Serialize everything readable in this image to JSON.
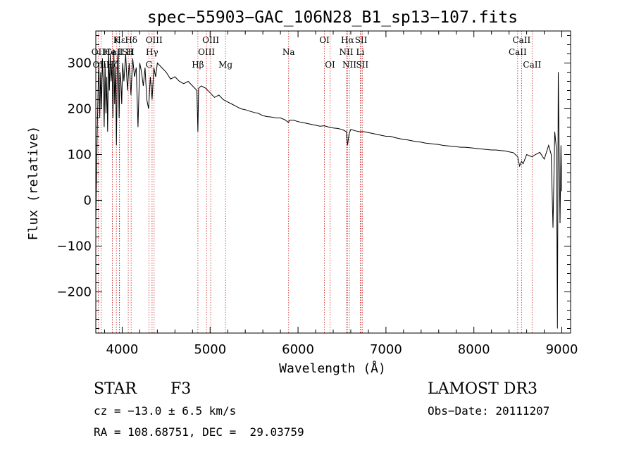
{
  "chart_data": {
    "type": "line",
    "title": "spec−55903−GAC_106N28_B1_sp13−107.fits",
    "xlabel": "Wavelength (Å)",
    "ylabel": "Flux (relative)",
    "xlim": [
      3700,
      9100
    ],
    "ylim": [
      -290,
      370
    ],
    "xticks": [
      4000,
      5000,
      6000,
      7000,
      8000,
      9000
    ],
    "yticks": [
      -200,
      -100,
      0,
      100,
      200,
      300
    ],
    "ytick_labels": [
      "−200",
      "−100",
      "0",
      "100",
      "200",
      "300"
    ],
    "series": [
      {
        "name": "flux",
        "x": [
          3700,
          3715,
          3725,
          3735,
          3745,
          3755,
          3765,
          3775,
          3785,
          3795,
          3805,
          3815,
          3825,
          3835,
          3845,
          3855,
          3865,
          3875,
          3885,
          3895,
          3905,
          3915,
          3925,
          3935,
          3945,
          3955,
          3965,
          3975,
          3985,
          3995,
          4005,
          4020,
          4040,
          4060,
          4080,
          4100,
          4120,
          4140,
          4160,
          4180,
          4200,
          4220,
          4240,
          4260,
          4280,
          4300,
          4320,
          4340,
          4360,
          4380,
          4400,
          4450,
          4500,
          4550,
          4600,
          4650,
          4700,
          4750,
          4800,
          4850,
          4861,
          4870,
          4900,
          4950,
          5000,
          5050,
          5100,
          5150,
          5200,
          5250,
          5300,
          5350,
          5400,
          5450,
          5500,
          5550,
          5600,
          5650,
          5700,
          5750,
          5800,
          5850,
          5893,
          5900,
          5950,
          6000,
          6050,
          6100,
          6150,
          6200,
          6250,
          6300,
          6350,
          6400,
          6450,
          6500,
          6550,
          6563,
          6580,
          6600,
          6650,
          6700,
          6750,
          6800,
          6850,
          6900,
          6950,
          7000,
          7050,
          7100,
          7150,
          7200,
          7250,
          7300,
          7350,
          7400,
          7450,
          7500,
          7550,
          7600,
          7650,
          7700,
          7750,
          7800,
          7850,
          7900,
          7950,
          8000,
          8050,
          8100,
          8150,
          8200,
          8250,
          8300,
          8350,
          8400,
          8450,
          8498,
          8520,
          8542,
          8560,
          8600,
          8662,
          8700,
          8750,
          8800,
          8850,
          8880,
          8900,
          8920,
          8940,
          8950,
          8960,
          8970,
          8980,
          8990,
          9000
        ],
        "y": [
          -50,
          140,
          230,
          300,
          180,
          280,
          200,
          310,
          260,
          160,
          300,
          190,
          270,
          150,
          330,
          240,
          320,
          260,
          300,
          180,
          330,
          210,
          290,
          120,
          300,
          330,
          180,
          280,
          260,
          210,
          300,
          260,
          320,
          240,
          300,
          230,
          310,
          270,
          290,
          160,
          300,
          280,
          250,
          290,
          220,
          200,
          270,
          220,
          290,
          270,
          300,
          290,
          280,
          265,
          270,
          260,
          255,
          260,
          250,
          240,
          150,
          245,
          250,
          245,
          235,
          225,
          230,
          220,
          215,
          210,
          205,
          200,
          198,
          195,
          192,
          190,
          185,
          183,
          182,
          180,
          180,
          176,
          170,
          175,
          175,
          172,
          170,
          168,
          166,
          164,
          162,
          163,
          160,
          158,
          157,
          155,
          150,
          120,
          145,
          155,
          152,
          150,
          150,
          148,
          146,
          144,
          142,
          140,
          140,
          137,
          135,
          133,
          132,
          130,
          128,
          127,
          125,
          124,
          123,
          122,
          120,
          119,
          118,
          117,
          116,
          116,
          115,
          114,
          113,
          112,
          111,
          110,
          110,
          109,
          108,
          106,
          104,
          95,
          75,
          85,
          80,
          100,
          95,
          100,
          105,
          90,
          120,
          100,
          -60,
          150,
          110,
          -280,
          280,
          100,
          -50,
          120,
          20
        ]
      }
    ],
    "lines": [
      {
        "name": "Hε",
        "wl": 3970,
        "row": 0
      },
      {
        "name": "CaII H",
        "wl": 3968,
        "row": 1
      },
      {
        "name": "K",
        "wl": 3934,
        "row": 0
      },
      {
        "name": "He I",
        "wl": 3889,
        "row": 1
      },
      {
        "name": "OII",
        "wl": 3727,
        "row": 1
      },
      {
        "name": "OIII",
        "wl": 3760,
        "row": 2
      },
      {
        "name": "Hζ",
        "wl": 3889,
        "row": 2
      },
      {
        "name": "Hδ",
        "wl": 4102,
        "row": 0
      },
      {
        "name": "SII",
        "wl": 4069,
        "row": 1
      },
      {
        "name": "OIII",
        "wl": 4363,
        "row": 0
      },
      {
        "name": "Hγ",
        "wl": 4340,
        "row": 1
      },
      {
        "name": "G",
        "wl": 4304,
        "row": 2
      },
      {
        "name": "OIII",
        "wl": 5007,
        "row": 0
      },
      {
        "name": "OIII",
        "wl": 4959,
        "row": 1
      },
      {
        "name": "Hβ",
        "wl": 4861,
        "row": 2
      },
      {
        "name": "Mg",
        "wl": 5175,
        "row": 2
      },
      {
        "name": "Na",
        "wl": 5893,
        "row": 1
      },
      {
        "name": "OI",
        "wl": 6300,
        "row": 0
      },
      {
        "name": "OI",
        "wl": 6364,
        "row": 2
      },
      {
        "name": "Hα",
        "wl": 6563,
        "row": 0
      },
      {
        "name": "NII",
        "wl": 6548,
        "row": 1
      },
      {
        "name": "NII",
        "wl": 6584,
        "row": 2
      },
      {
        "name": "SII",
        "wl": 6717,
        "row": 0
      },
      {
        "name": "Li",
        "wl": 6708,
        "row": 1
      },
      {
        "name": "SII",
        "wl": 6731,
        "row": 2
      },
      {
        "name": "CaII",
        "wl": 8542,
        "row": 0
      },
      {
        "name": "CaII",
        "wl": 8498,
        "row": 1
      },
      {
        "name": "CaII",
        "wl": 8662,
        "row": 2
      }
    ]
  },
  "info": {
    "object_class": "STAR",
    "subclass": "F3",
    "survey": "LAMOST DR3",
    "cz": "cz = −13.0 ± 6.5 km/s",
    "obs_date": "Obs−Date: 20111207",
    "coords": "RA = 108.68751, DEC =  29.03759"
  },
  "colors": {
    "line_marker": "#cc2222",
    "spectrum": "#000000"
  }
}
